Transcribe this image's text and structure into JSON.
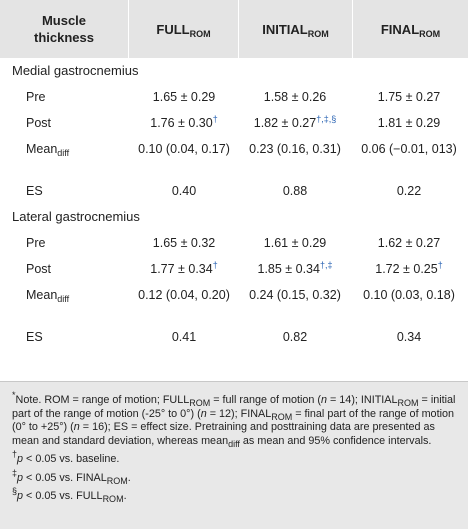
{
  "header": [
    {
      "main": "Muscle thickness"
    },
    {
      "main": "FULL",
      "sub": "ROM"
    },
    {
      "main": "INITIAL",
      "sub": "ROM"
    },
    {
      "main": "FINAL",
      "sub": "ROM"
    }
  ],
  "sections": [
    {
      "title": "Medial gastrocnemius",
      "rows": [
        {
          "label": {
            "main": "Pre"
          },
          "cells": [
            {
              "text": "1.65 ± 0.29"
            },
            {
              "text": "1.58 ± 0.26"
            },
            {
              "text": "1.75 ± 0.27"
            }
          ]
        },
        {
          "label": {
            "main": "Post"
          },
          "cells": [
            {
              "text": "1.76 ± 0.30",
              "sup": "†"
            },
            {
              "text": "1.82 ± 0.27",
              "sup": "†,‡,§"
            },
            {
              "text": "1.81 ± 0.29"
            }
          ]
        },
        {
          "label": {
            "main": "Mean",
            "sub": "diff"
          },
          "cells": [
            {
              "text": "0.10 (0.04, 0.17)"
            },
            {
              "text": "0.23 (0.16, 0.31)"
            },
            {
              "text": "0.06 (−0.01, 013)"
            }
          ]
        },
        {
          "label": {
            "main": "ES"
          },
          "cells": [
            {
              "text": "0.40"
            },
            {
              "text": "0.88"
            },
            {
              "text": "0.22"
            }
          ]
        }
      ]
    },
    {
      "title": "Lateral gastrocnemius",
      "rows": [
        {
          "label": {
            "main": "Pre"
          },
          "cells": [
            {
              "text": "1.65 ± 0.32"
            },
            {
              "text": "1.61 ± 0.29"
            },
            {
              "text": "1.62 ± 0.27"
            }
          ]
        },
        {
          "label": {
            "main": "Post"
          },
          "cells": [
            {
              "text": "1.77 ± 0.34",
              "sup": "†"
            },
            {
              "text": "1.85 ± 0.34",
              "sup": "†,‡"
            },
            {
              "text": "1.72 ± 0.25",
              "sup": "†"
            }
          ]
        },
        {
          "label": {
            "main": "Mean",
            "sub": "diff"
          },
          "cells": [
            {
              "text": "0.12 (0.04, 0.20)"
            },
            {
              "text": "0.24 (0.15, 0.32)"
            },
            {
              "text": "0.10 (0.03, 0.18)"
            }
          ]
        },
        {
          "label": {
            "main": "ES"
          },
          "cells": [
            {
              "text": "0.41"
            },
            {
              "text": "0.82"
            },
            {
              "text": "0.34"
            }
          ]
        }
      ]
    }
  ],
  "footnotes": [
    [
      {
        "sup": "*"
      },
      {
        "text": "Note. ROM = range of motion; FULL"
      },
      {
        "sub": "ROM"
      },
      {
        "text": " = full range of motion ("
      },
      {
        "italic": "n"
      },
      {
        "text": " = 14); INITIAL"
      },
      {
        "sub": "ROM"
      },
      {
        "text": " = initial part of the range of motion (-25° to 0°) ("
      },
      {
        "italic": "n"
      },
      {
        "text": " = 12); FINAL"
      },
      {
        "sub": "ROM"
      },
      {
        "text": " = final part of the range of motion (0° to +25°) ("
      },
      {
        "italic": "n"
      },
      {
        "text": " = 16); ES = effect size. Pretraining and posttraining data are presented as mean and standard deviation, whereas mean"
      },
      {
        "sub": "diff"
      },
      {
        "text": " as mean and 95% confidence intervals."
      }
    ],
    [
      {
        "sup": "†"
      },
      {
        "italic": "p"
      },
      {
        "text": " < 0.05 vs. baseline."
      }
    ],
    [
      {
        "sup": "‡"
      },
      {
        "italic": "p"
      },
      {
        "text": " < 0.05 vs. FINAL"
      },
      {
        "sub": "ROM"
      },
      {
        "text": "."
      }
    ],
    [
      {
        "sup": "§"
      },
      {
        "italic": "p"
      },
      {
        "text": " < 0.05 vs. FULL"
      },
      {
        "sub": "ROM"
      },
      {
        "text": "."
      }
    ]
  ]
}
